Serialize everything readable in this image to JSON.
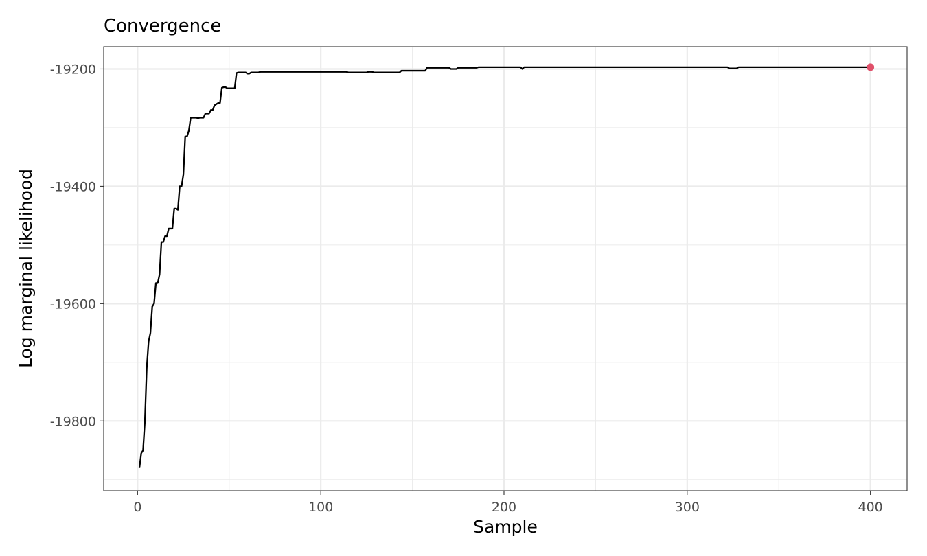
{
  "chart_data": {
    "type": "line",
    "title": "Convergence",
    "xlabel": "Sample",
    "ylabel": "Log marginal likelihood",
    "xlim": [
      -18.5,
      420
    ],
    "ylim": [
      -19919,
      -19162
    ],
    "x_ticks": [
      0,
      100,
      200,
      300,
      400
    ],
    "x_tick_labels": [
      "0",
      "100",
      "200",
      "300",
      "400"
    ],
    "y_ticks": [
      -19800,
      -19600,
      -19400,
      -19200
    ],
    "y_tick_labels": [
      "-19800",
      "-19600",
      "-19400",
      "-19200"
    ],
    "grid": true,
    "legend": "none",
    "colors": {
      "line": "#000000",
      "highlight": "#e0506a"
    },
    "series": [
      {
        "points": [
          [
            1,
            -19880
          ],
          [
            2,
            -19855
          ],
          [
            3,
            -19850
          ],
          [
            4,
            -19800
          ],
          [
            5,
            -19710
          ],
          [
            6,
            -19665
          ],
          [
            7,
            -19650
          ],
          [
            8,
            -19605
          ],
          [
            9,
            -19600
          ],
          [
            10,
            -19565
          ],
          [
            11,
            -19565
          ],
          [
            12,
            -19550
          ],
          [
            13,
            -19495
          ],
          [
            14,
            -19495
          ],
          [
            15,
            -19485
          ],
          [
            16,
            -19485
          ],
          [
            17,
            -19472
          ],
          [
            18,
            -19472
          ],
          [
            19,
            -19472
          ],
          [
            20,
            -19438
          ],
          [
            21,
            -19438
          ],
          [
            22,
            -19440
          ],
          [
            23,
            -19400
          ],
          [
            24,
            -19400
          ],
          [
            25,
            -19380
          ],
          [
            26,
            -19315
          ],
          [
            27,
            -19315
          ],
          [
            28,
            -19305
          ],
          [
            29,
            -19283
          ],
          [
            30,
            -19283
          ],
          [
            31,
            -19283
          ],
          [
            32,
            -19283
          ],
          [
            33,
            -19284
          ],
          [
            34,
            -19283
          ],
          [
            35,
            -19283
          ],
          [
            36,
            -19283
          ],
          [
            37,
            -19276
          ],
          [
            38,
            -19276
          ],
          [
            39,
            -19276
          ],
          [
            40,
            -19270
          ],
          [
            41,
            -19270
          ],
          [
            42,
            -19262
          ],
          [
            43,
            -19260
          ],
          [
            44,
            -19258
          ],
          [
            45,
            -19258
          ],
          [
            46,
            -19232
          ],
          [
            47,
            -19231
          ],
          [
            48,
            -19231
          ],
          [
            49,
            -19233
          ],
          [
            50,
            -19233
          ],
          [
            51,
            -19233
          ],
          [
            52,
            -19233
          ],
          [
            53,
            -19233
          ],
          [
            54,
            -19207
          ],
          [
            55,
            -19206
          ],
          [
            56,
            -19206
          ],
          [
            57,
            -19206
          ],
          [
            58,
            -19206
          ],
          [
            59,
            -19206
          ],
          [
            60,
            -19208
          ],
          [
            61,
            -19208
          ],
          [
            62,
            -19206
          ],
          [
            63,
            -19206
          ],
          [
            64,
            -19206
          ],
          [
            65,
            -19206
          ],
          [
            66,
            -19206
          ],
          [
            67,
            -19205
          ],
          [
            68,
            -19205
          ],
          [
            80,
            -19205
          ],
          [
            90,
            -19205
          ],
          [
            100,
            -19205
          ],
          [
            114,
            -19205
          ],
          [
            115,
            -19206
          ],
          [
            125,
            -19206
          ],
          [
            126,
            -19205
          ],
          [
            128,
            -19205
          ],
          [
            129,
            -19206
          ],
          [
            143,
            -19206
          ],
          [
            144,
            -19203
          ],
          [
            157,
            -19203
          ],
          [
            158,
            -19198
          ],
          [
            170,
            -19198
          ],
          [
            171,
            -19200
          ],
          [
            174,
            -19200
          ],
          [
            175,
            -19198
          ],
          [
            185,
            -19198
          ],
          [
            186,
            -19197
          ],
          [
            209,
            -19197
          ],
          [
            210,
            -19200
          ],
          [
            211,
            -19197
          ],
          [
            250,
            -19197
          ],
          [
            300,
            -19197
          ],
          [
            322,
            -19197
          ],
          [
            323,
            -19199
          ],
          [
            327,
            -19199
          ],
          [
            328,
            -19197
          ],
          [
            400,
            -19197
          ]
        ]
      }
    ],
    "highlight_point": {
      "x": 400,
      "y": -19197
    }
  }
}
